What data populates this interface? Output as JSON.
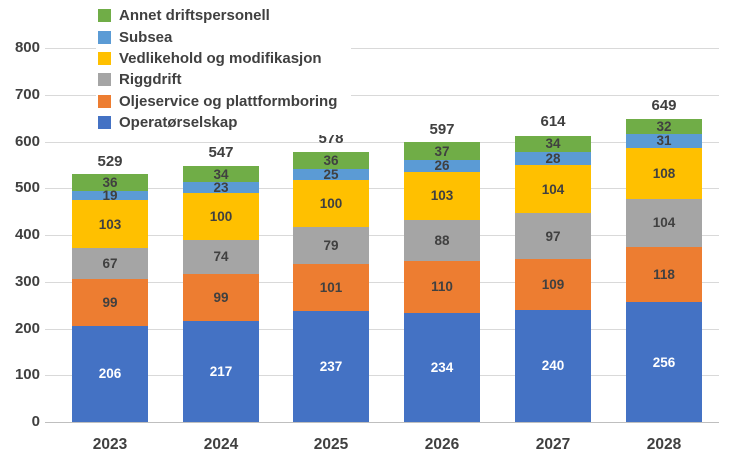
{
  "chart_data": {
    "type": "bar",
    "stacked": true,
    "title": "",
    "xlabel": "",
    "ylabel": "",
    "grid": true,
    "legend_position": "top-left",
    "categories": [
      "2023",
      "2024",
      "2025",
      "2026",
      "2027",
      "2028"
    ],
    "series": [
      {
        "name": "Operatørselskap",
        "color": "#4472C4",
        "label_color": "#ffffff",
        "values": [
          206,
          217,
          237,
          234,
          240,
          256
        ]
      },
      {
        "name": "Oljeservice og plattformboring",
        "color": "#ED7D31",
        "label_color": "#404040",
        "values": [
          99,
          99,
          101,
          110,
          109,
          118
        ]
      },
      {
        "name": "Riggdrift",
        "color": "#A5A5A5",
        "label_color": "#404040",
        "values": [
          67,
          74,
          79,
          88,
          97,
          104
        ]
      },
      {
        "name": "Vedlikehold og modifikasjon",
        "color": "#FFC000",
        "label_color": "#404040",
        "values": [
          103,
          100,
          100,
          103,
          104,
          108
        ]
      },
      {
        "name": "Subsea",
        "color": "#5B9BD5",
        "label_color": "#404040",
        "values": [
          19,
          23,
          25,
          26,
          28,
          31
        ]
      },
      {
        "name": "Annet driftspersonell",
        "color": "#70AD47",
        "label_color": "#404040",
        "values": [
          36,
          34,
          36,
          37,
          34,
          32
        ]
      }
    ],
    "totals": [
      529,
      547,
      578,
      597,
      614,
      649
    ],
    "y_axis": {
      "min": 0,
      "max": 800,
      "step": 100,
      "ticks": [
        "0",
        "100",
        "200",
        "300",
        "400",
        "500",
        "600",
        "700",
        "800"
      ]
    },
    "legend": {
      "position": "top-left",
      "entries": [
        "Annet driftspersonell",
        "Subsea",
        "Vedlikehold og modifikasjon",
        "Riggdrift",
        "Oljeservice og plattformboring",
        "Operatørselskap"
      ]
    },
    "colors": {
      "text": "#404040",
      "gridline": "#d9d9d9",
      "axis_line": "#bfbfbf"
    }
  }
}
